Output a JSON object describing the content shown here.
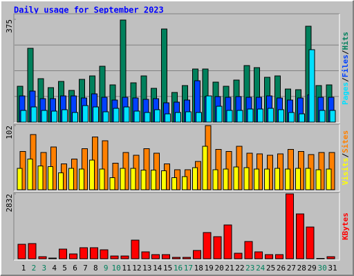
{
  "chart_data": [
    {
      "type": "bar",
      "title": "Daily usage for September 2023",
      "ylim": [
        0,
        375
      ],
      "yticks": [
        375
      ],
      "legend_separator": "/",
      "series": [
        {
          "name": "Hits",
          "color": "#00805c",
          "values": [
            131,
            269,
            159,
            126,
            148,
            116,
            156,
            169,
            204,
            136,
            372,
            143,
            169,
            123,
            340,
            108,
            133,
            194,
            194,
            146,
            131,
            154,
            206,
            199,
            164,
            169,
            121,
            118,
            350,
            133,
            136
          ]
        },
        {
          "name": "Files",
          "color": "#0040ff",
          "values": [
            96,
            113,
            86,
            86,
            96,
            96,
            88,
            103,
            91,
            81,
            91,
            88,
            83,
            86,
            70,
            73,
            81,
            151,
            93,
            93,
            91,
            93,
            91,
            91,
            96,
            88,
            81,
            88,
            100,
            91,
            91
          ]
        },
        {
          "name": "Pages",
          "color": "#00e0ff",
          "values": [
            43,
            55,
            43,
            40,
            45,
            35,
            60,
            55,
            38,
            50,
            55,
            40,
            35,
            45,
            30,
            35,
            38,
            35,
            96,
            58,
            43,
            43,
            48,
            48,
            50,
            45,
            35,
            30,
            264,
            43,
            43
          ]
        }
      ]
    },
    {
      "type": "bar",
      "ylim": [
        0,
        102
      ],
      "yticks": [
        102
      ],
      "legend_separator": "/",
      "series": [
        {
          "name": "Sites",
          "color": "#ff8000",
          "values": [
            61,
            88,
            59,
            68,
            41,
            49,
            65,
            84,
            78,
            42,
            59,
            55,
            65,
            58,
            41,
            32,
            32,
            45,
            102,
            64,
            61,
            69,
            58,
            57,
            55,
            57,
            64,
            61,
            56,
            59,
            59
          ]
        },
        {
          "name": "Visits",
          "color": "#ffff00",
          "values": [
            34,
            49,
            38,
            37,
            27,
            34,
            33,
            47,
            33,
            19,
            34,
            34,
            31,
            31,
            30,
            19,
            21,
            35,
            69,
            32,
            33,
            36,
            35,
            33,
            33,
            34,
            33,
            34,
            34,
            32,
            33
          ]
        }
      ]
    },
    {
      "type": "bar",
      "ylim": [
        0,
        2832
      ],
      "yticks": [
        2832
      ],
      "categories": [
        "1",
        "2",
        "3",
        "4",
        "5",
        "6",
        "7",
        "8",
        "9",
        "10",
        "11",
        "12",
        "13",
        "14",
        "15",
        "16",
        "17",
        "18",
        "19",
        "20",
        "21",
        "22",
        "23",
        "24",
        "25",
        "26",
        "27",
        "28",
        "29",
        "30",
        "31"
      ],
      "category_colors": [
        "#000000",
        "#00805c",
        "#00805c",
        "#000000",
        "#000000",
        "#000000",
        "#000000",
        "#000000",
        "#00805c",
        "#00805c",
        "#000000",
        "#000000",
        "#000000",
        "#000000",
        "#000000",
        "#00805c",
        "#00805c",
        "#000000",
        "#000000",
        "#000000",
        "#000000",
        "#000000",
        "#00805c",
        "#00805c",
        "#000000",
        "#000000",
        "#000000",
        "#000000",
        "#000000",
        "#00805c",
        "#000000"
      ],
      "series": [
        {
          "name": "KBytes",
          "color": "#ff0000",
          "values": [
            632,
            662,
            90,
            30,
            421,
            211,
            482,
            482,
            391,
            120,
            120,
            813,
            301,
            181,
            181,
            60,
            60,
            361,
            1144,
            963,
            1475,
            241,
            753,
            301,
            181,
            181,
            2832,
            1957,
            1385,
            10,
            90
          ]
        }
      ]
    }
  ]
}
